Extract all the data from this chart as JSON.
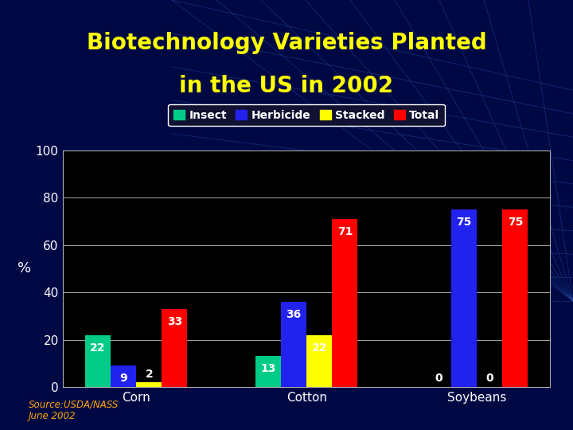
{
  "title_line1": "Biotechnology Varieties Planted",
  "title_line2": "in the US in 2002",
  "title_color": "#FFFF00",
  "source_text": "Source:USDA/NASS\nJune 2002",
  "source_color": "#FFA500",
  "ylabel": "%",
  "categories": [
    "Corn",
    "Cotton",
    "Soybeans"
  ],
  "series": [
    "Insect",
    "Herbicide",
    "Stacked",
    "Total"
  ],
  "colors": [
    "#00CC88",
    "#2222EE",
    "#FFFF00",
    "#FF0000"
  ],
  "values": {
    "Corn": [
      22,
      9,
      2,
      33
    ],
    "Cotton": [
      13,
      36,
      22,
      71
    ],
    "Soybeans": [
      0,
      75,
      0,
      75
    ]
  },
  "ylim": [
    0,
    100
  ],
  "yticks": [
    0,
    20,
    40,
    60,
    80,
    100
  ],
  "bar_width": 0.15,
  "background_color": "#000844",
  "plot_bg_color": "#000000",
  "grid_color": "#AAAAAA",
  "tick_color": "#FFFFFF",
  "axis_label_color": "#FFFFFF",
  "title_fontsize": 20,
  "label_fontsize": 11,
  "tick_fontsize": 11,
  "bar_label_fontsize": 10,
  "legend_facecolor": "#111133",
  "legend_edgecolor": "#FFFFFF",
  "legend_text_color": "#FFFFFF",
  "legend_fontsize": 10
}
